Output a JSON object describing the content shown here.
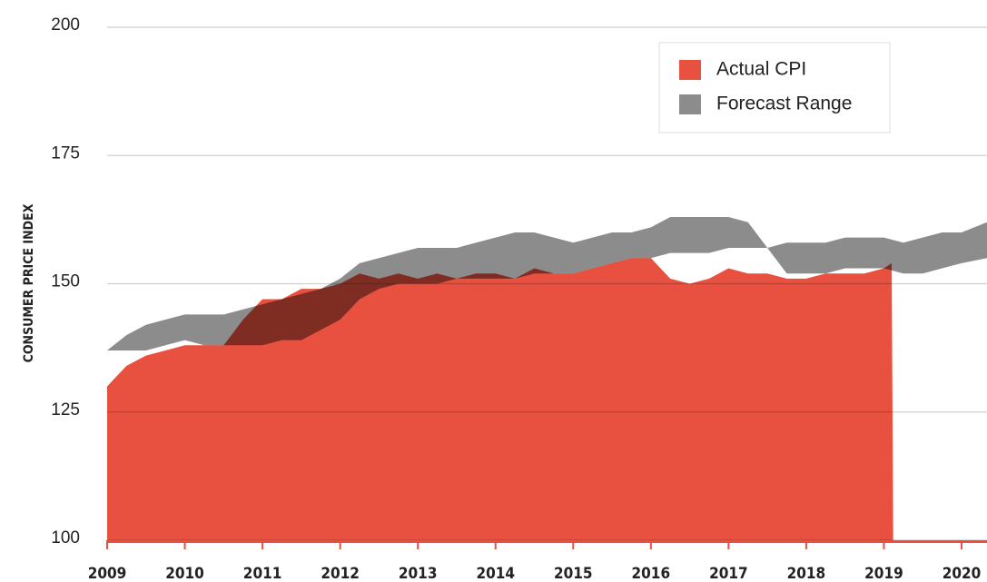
{
  "chart_data": {
    "type": "area",
    "ylabel": "CONSUMER PRICE INDEX",
    "xlim": [
      2009,
      2020.33
    ],
    "ylim": [
      100,
      200
    ],
    "xticks": [
      2009,
      2010,
      2011,
      2012,
      2013,
      2014,
      2015,
      2016,
      2017,
      2018,
      2019,
      2020
    ],
    "yticks": [
      100,
      125,
      150,
      175,
      200
    ],
    "grid": true,
    "legend": "upper right",
    "series": [
      {
        "name": "Actual CPI",
        "color": "#e8503f",
        "x": [
          2009,
          2009.25,
          2009.5,
          2009.75,
          2010,
          2010.25,
          2010.5,
          2010.75,
          2011,
          2011.25,
          2011.5,
          2011.75,
          2012,
          2012.25,
          2012.5,
          2012.75,
          2013,
          2013.25,
          2013.5,
          2013.75,
          2014,
          2014.25,
          2014.5,
          2014.75,
          2015,
          2015.25,
          2015.5,
          2015.75,
          2016,
          2016.25,
          2016.5,
          2016.75,
          2017,
          2017.25,
          2017.5,
          2017.75,
          2018,
          2018.25,
          2018.5,
          2018.75,
          2019,
          2019.1,
          2019.12,
          2020.33
        ],
        "values": [
          130,
          134,
          136,
          137,
          138,
          138,
          138,
          143,
          147,
          147,
          149,
          149,
          150,
          152,
          151,
          152,
          151,
          152,
          151,
          152,
          152,
          151,
          153,
          152,
          152,
          153,
          154,
          155,
          155,
          151,
          150,
          151,
          153,
          152,
          152,
          151,
          151,
          152,
          152,
          152,
          153,
          154,
          100,
          100
        ]
      },
      {
        "name": "Forecast Range",
        "color": "#8c8c8c",
        "x": [
          2009,
          2009.25,
          2009.5,
          2009.75,
          2010,
          2010.25,
          2010.5,
          2010.75,
          2011,
          2011.25,
          2011.5,
          2011.75,
          2012,
          2012.25,
          2012.5,
          2012.75,
          2013,
          2013.25,
          2013.5,
          2013.75,
          2014,
          2014.25,
          2014.5,
          2014.75,
          2015,
          2015.25,
          2015.5,
          2015.75,
          2016,
          2016.25,
          2016.5,
          2016.75,
          2017,
          2017.25,
          2017.5,
          2017.75,
          2018,
          2018.25,
          2018.5,
          2018.75,
          2019,
          2019.25,
          2019.5,
          2019.75,
          2020,
          2020.33
        ],
        "lower": [
          137,
          137,
          137,
          138,
          139,
          138,
          138,
          138,
          138,
          139,
          139,
          141,
          143,
          147,
          149,
          150,
          150,
          150,
          151,
          151,
          151,
          151,
          152,
          152,
          152,
          153,
          154,
          155,
          155,
          156,
          156,
          156,
          157,
          157,
          157,
          152,
          152,
          152,
          153,
          153,
          153,
          152,
          152,
          153,
          154,
          155
        ],
        "upper": [
          137,
          140,
          142,
          143,
          144,
          144,
          144,
          145,
          146,
          147,
          148,
          149,
          151,
          154,
          155,
          156,
          157,
          157,
          157,
          158,
          159,
          160,
          160,
          159,
          158,
          159,
          160,
          160,
          161,
          163,
          163,
          163,
          163,
          162,
          157,
          158,
          158,
          158,
          159,
          159,
          159,
          158,
          159,
          160,
          160,
          162
        ]
      }
    ]
  }
}
